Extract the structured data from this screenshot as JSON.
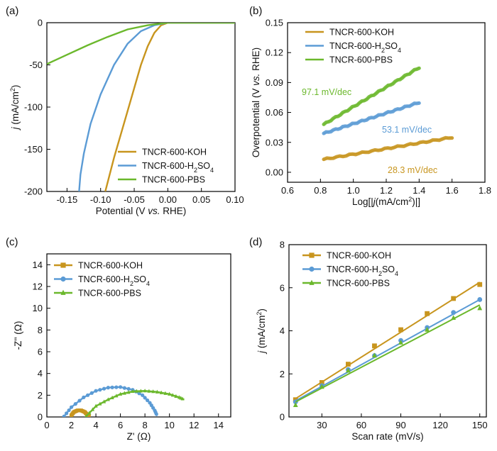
{
  "colors": {
    "KOH": "#c8951e",
    "H2SO4": "#5b9bd5",
    "PBS": "#6bb82c"
  },
  "chart_data": [
    {
      "panel": "(a)",
      "type": "line",
      "xlabel": "Potential (V vs. RHE)",
      "xlabel_parts": [
        "Potential (V ",
        "vs.",
        " RHE)"
      ],
      "ylabel_parts": [
        "j",
        " (mA/cm",
        "2",
        ")"
      ],
      "xlim": [
        -0.18,
        0.1
      ],
      "ylim": [
        -200,
        0
      ],
      "xticks": [
        -0.15,
        -0.1,
        -0.05,
        0.0,
        0.05,
        0.1
      ],
      "xtick_labels": [
        "-0.15",
        "-0.10",
        "-0.05",
        "0.00",
        "0.05",
        "0.10"
      ],
      "yticks": [
        0,
        -50,
        -100,
        -150,
        -200
      ],
      "ytick_labels": [
        "0",
        "-50",
        "-100",
        "-150",
        "-200"
      ],
      "legend_position": "bottom-right",
      "series": [
        {
          "name": "TNCR-600-KOH",
          "label_parts": [
            "TNCR-600-KOH"
          ],
          "color_key": "KOH",
          "x": [
            -0.093,
            -0.08,
            -0.06,
            -0.04,
            -0.03,
            -0.02,
            -0.01,
            0.0,
            0.1
          ],
          "y": [
            -200,
            -160,
            -105,
            -50,
            -28,
            -12,
            -3,
            0,
            0
          ]
        },
        {
          "name": "TNCR-600-H2SO4",
          "label_parts": [
            "TNCR-600-H",
            "2",
            "SO",
            "4"
          ],
          "color_key": "H2SO4",
          "x": [
            -0.132,
            -0.13,
            -0.125,
            -0.115,
            -0.1,
            -0.08,
            -0.06,
            -0.04,
            -0.02,
            0.0,
            0.1
          ],
          "y": [
            -200,
            -180,
            -155,
            -120,
            -85,
            -50,
            -25,
            -10,
            -3,
            0,
            0
          ]
        },
        {
          "name": "TNCR-600-PBS",
          "label_parts": [
            "TNCR-600-PBS"
          ],
          "color_key": "PBS",
          "x": [
            -0.18,
            -0.15,
            -0.12,
            -0.09,
            -0.06,
            -0.03,
            -0.01,
            0.0,
            0.1
          ],
          "y": [
            -49,
            -38,
            -27,
            -17,
            -8,
            -3,
            -1,
            0,
            0
          ]
        }
      ]
    },
    {
      "panel": "(b)",
      "type": "scatter",
      "xlabel_parts": [
        "Log[|",
        "j",
        "(mA/cm",
        "2",
        ")|]"
      ],
      "ylabel_parts": [
        "Overpotential (V ",
        "vs.",
        " RHE)"
      ],
      "xlim": [
        0.6,
        1.8
      ],
      "ylim": [
        -0.01,
        0.15
      ],
      "xticks": [
        0.6,
        0.8,
        1.0,
        1.2,
        1.4,
        1.6,
        1.8
      ],
      "xtick_labels": [
        "0.6",
        "0.8",
        "1.0",
        "1.2",
        "1.4",
        "1.6",
        "1.8"
      ],
      "yticks": [
        0.0,
        0.03,
        0.06,
        0.09,
        0.12,
        0.15
      ],
      "ytick_labels": [
        "0.00",
        "0.03",
        "0.06",
        "0.09",
        "0.12",
        "0.15"
      ],
      "legend_position": "top-left",
      "series": [
        {
          "name": "TNCR-600-KOH",
          "label_parts": [
            "TNCR-600-KOH"
          ],
          "color_key": "KOH",
          "x": [
            0.82,
            1.6
          ],
          "y": [
            0.013,
            0.035
          ],
          "annotation": "28.3 mV/dec"
        },
        {
          "name": "TNCR-600-H2SO4",
          "label_parts": [
            "TNCR-600-H",
            "2",
            "SO",
            "4"
          ],
          "color_key": "H2SO4",
          "x": [
            0.82,
            1.4
          ],
          "y": [
            0.039,
            0.07
          ],
          "annotation": "53.1 mV/dec"
        },
        {
          "name": "TNCR-600-PBS",
          "label_parts": [
            "TNCR-600-PBS"
          ],
          "color_key": "PBS",
          "x": [
            0.82,
            1.4
          ],
          "y": [
            0.048,
            0.105
          ],
          "annotation": "97.1 mV/dec"
        }
      ]
    },
    {
      "panel": "(c)",
      "type": "scatter",
      "xlabel": "Z' (Ω)",
      "ylabel": "-Z'' (Ω)",
      "xlim": [
        0,
        15
      ],
      "ylim": [
        0,
        15
      ],
      "xticks": [
        0,
        2,
        4,
        6,
        8,
        10,
        12,
        14
      ],
      "xtick_labels": [
        "0",
        "2",
        "4",
        "6",
        "8",
        "10",
        "12",
        "14"
      ],
      "yticks": [
        0,
        2,
        4,
        6,
        8,
        10,
        12,
        14
      ],
      "ytick_labels": [
        "0",
        "2",
        "4",
        "6",
        "8",
        "10",
        "12",
        "14"
      ],
      "legend_position": "top-left",
      "series": [
        {
          "name": "TNCR-600-KOH",
          "label_parts": [
            "TNCR-600-KOH"
          ],
          "color_key": "KOH",
          "marker": "square",
          "x": [
            2.0,
            2.2,
            2.5,
            2.8,
            3.1,
            3.3,
            3.5
          ],
          "y": [
            0.15,
            0.45,
            0.6,
            0.6,
            0.45,
            0.2,
            0.02
          ]
        },
        {
          "name": "TNCR-600-H2SO4",
          "label_parts": [
            "TNCR-600-H",
            "2",
            "SO",
            "4"
          ],
          "color_key": "H2SO4",
          "marker": "circle",
          "x": [
            1.4,
            2.0,
            3.0,
            4.0,
            5.0,
            6.0,
            7.0,
            7.8,
            8.4,
            8.8,
            9.0
          ],
          "y": [
            0.05,
            0.9,
            1.8,
            2.4,
            2.7,
            2.75,
            2.5,
            2.0,
            1.3,
            0.6,
            0.1
          ]
        },
        {
          "name": "TNCR-600-PBS",
          "label_parts": [
            "TNCR-600-PBS"
          ],
          "color_key": "PBS",
          "marker": "triangle",
          "x": [
            3.2,
            4.0,
            5.0,
            6.0,
            7.0,
            8.0,
            9.0,
            10.0,
            10.8,
            11.2
          ],
          "y": [
            0.05,
            1.0,
            1.6,
            2.1,
            2.35,
            2.4,
            2.3,
            2.1,
            1.8,
            1.6
          ]
        }
      ]
    },
    {
      "panel": "(d)",
      "type": "scatter",
      "xlabel": "Scan rate (mV/s)",
      "ylabel_parts": [
        "j",
        " (mA/cm",
        "2",
        ")"
      ],
      "xlim": [
        5,
        155
      ],
      "ylim": [
        0,
        8
      ],
      "xticks": [
        30,
        60,
        90,
        120,
        150
      ],
      "xtick_labels": [
        "30",
        "60",
        "90",
        "120",
        "150"
      ],
      "yticks": [
        0,
        2,
        4,
        6,
        8
      ],
      "ytick_labels": [
        "0",
        "2",
        "4",
        "6",
        "8"
      ],
      "legend_position": "top-left",
      "x": [
        10,
        30,
        50,
        70,
        90,
        110,
        130,
        150
      ],
      "series": [
        {
          "name": "TNCR-600-KOH",
          "label_parts": [
            "TNCR-600-KOH"
          ],
          "color_key": "KOH",
          "marker": "square",
          "values": [
            0.8,
            1.6,
            2.45,
            3.3,
            4.05,
            4.8,
            5.5,
            6.15
          ],
          "fit": [
            [
              10,
              0.85
            ],
            [
              150,
              6.25
            ]
          ]
        },
        {
          "name": "TNCR-600-H2SO4",
          "label_parts": [
            "TNCR-600-H",
            "2",
            "SO",
            "4"
          ],
          "color_key": "H2SO4",
          "marker": "circle",
          "values": [
            0.7,
            1.45,
            2.2,
            2.85,
            3.55,
            4.15,
            4.85,
            5.45
          ],
          "fit": [
            [
              10,
              0.75
            ],
            [
              150,
              5.45
            ]
          ]
        },
        {
          "name": "TNCR-600-PBS",
          "label_parts": [
            "TNCR-600-PBS"
          ],
          "color_key": "PBS",
          "marker": "triangle",
          "values": [
            0.55,
            1.4,
            2.15,
            2.85,
            3.45,
            4.05,
            4.6,
            5.05
          ],
          "fit": [
            [
              10,
              0.7
            ],
            [
              150,
              5.2
            ]
          ]
        }
      ]
    }
  ]
}
